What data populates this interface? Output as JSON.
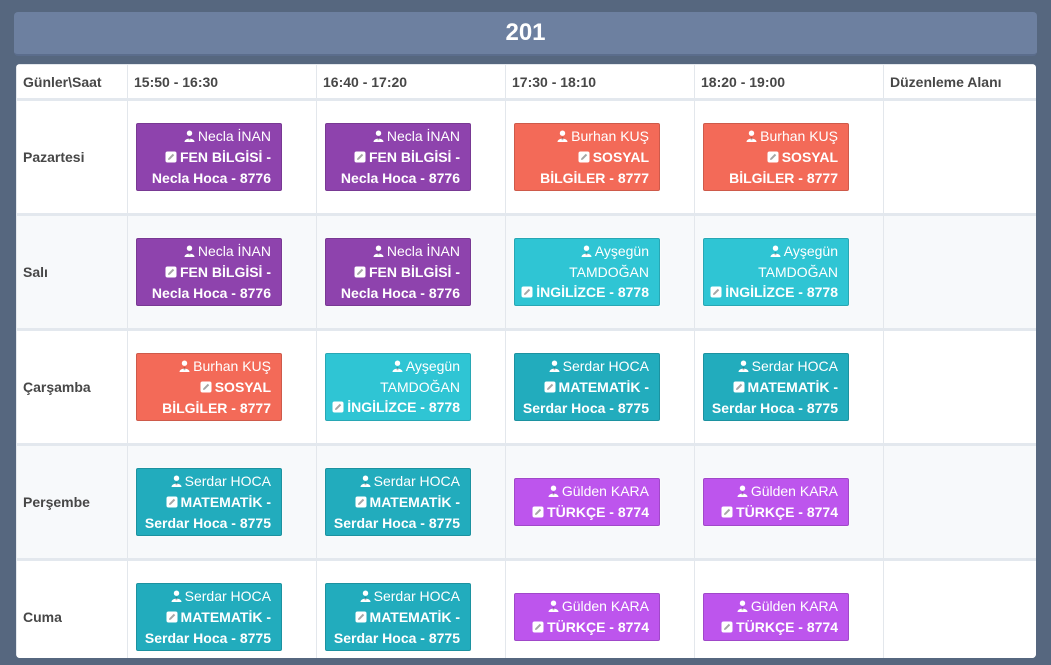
{
  "title": "201",
  "columns": {
    "corner": "Günler\\Saat",
    "slots": [
      "15:50 - 16:30",
      "16:40 - 17:20",
      "17:30 - 18:10",
      "18:20 - 19:00"
    ],
    "edit_area": "Düzenleme Alanı"
  },
  "colors": {
    "purple": "#8e43ad",
    "orange": "#f36a58",
    "cyan": "#2fc5d4",
    "teal": "#22acbd",
    "violet": "#bd55ed"
  },
  "days": [
    {
      "name": "Pazartesi",
      "lessons": [
        {
          "teacher": "Necla İNAN",
          "subject": "FEN BİLGİSİ - Necla Hoca - 8776",
          "color": "#8e43ad"
        },
        {
          "teacher": "Necla İNAN",
          "subject": "FEN BİLGİSİ - Necla Hoca - 8776",
          "color": "#8e43ad"
        },
        {
          "teacher": "Burhan KUŞ",
          "subject": "SOSYAL BİLGİLER - 8777",
          "color": "#f36a58"
        },
        {
          "teacher": "Burhan KUŞ",
          "subject": "SOSYAL BİLGİLER - 8777",
          "color": "#f36a58"
        }
      ]
    },
    {
      "name": "Salı",
      "lessons": [
        {
          "teacher": "Necla İNAN",
          "subject": "FEN BİLGİSİ - Necla Hoca - 8776",
          "color": "#8e43ad"
        },
        {
          "teacher": "Necla İNAN",
          "subject": "FEN BİLGİSİ - Necla Hoca - 8776",
          "color": "#8e43ad"
        },
        {
          "teacher": "Ayşegün TAMDOĞAN",
          "subject": "İNGİLİZCE - 8778",
          "color": "#2fc5d4"
        },
        {
          "teacher": "Ayşegün TAMDOĞAN",
          "subject": "İNGİLİZCE - 8778",
          "color": "#2fc5d4"
        }
      ]
    },
    {
      "name": "Çarşamba",
      "lessons": [
        {
          "teacher": "Burhan KUŞ",
          "subject": "SOSYAL BİLGİLER - 8777",
          "color": "#f36a58"
        },
        {
          "teacher": "Ayşegün TAMDOĞAN",
          "subject": "İNGİLİZCE - 8778",
          "color": "#2fc5d4"
        },
        {
          "teacher": "Serdar HOCA",
          "subject": "MATEMATİK - Serdar Hoca - 8775",
          "color": "#22acbd"
        },
        {
          "teacher": "Serdar HOCA",
          "subject": "MATEMATİK - Serdar Hoca - 8775",
          "color": "#22acbd"
        }
      ]
    },
    {
      "name": "Perşembe",
      "lessons": [
        {
          "teacher": "Serdar HOCA",
          "subject": "MATEMATİK - Serdar Hoca - 8775",
          "color": "#22acbd"
        },
        {
          "teacher": "Serdar HOCA",
          "subject": "MATEMATİK - Serdar Hoca - 8775",
          "color": "#22acbd"
        },
        {
          "teacher": "Gülden KARA",
          "subject": "TÜRKÇE - 8774",
          "color": "#bd55ed"
        },
        {
          "teacher": "Gülden KARA",
          "subject": "TÜRKÇE - 8774",
          "color": "#bd55ed"
        }
      ]
    },
    {
      "name": "Cuma",
      "lessons": [
        {
          "teacher": "Serdar HOCA",
          "subject": "MATEMATİK - Serdar Hoca - 8775",
          "color": "#22acbd"
        },
        {
          "teacher": "Serdar HOCA",
          "subject": "MATEMATİK - Serdar Hoca - 8775",
          "color": "#22acbd"
        },
        {
          "teacher": "Gülden KARA",
          "subject": "TÜRKÇE - 8774",
          "color": "#bd55ed"
        },
        {
          "teacher": "Gülden KARA",
          "subject": "TÜRKÇE - 8774",
          "color": "#bd55ed"
        }
      ]
    }
  ]
}
